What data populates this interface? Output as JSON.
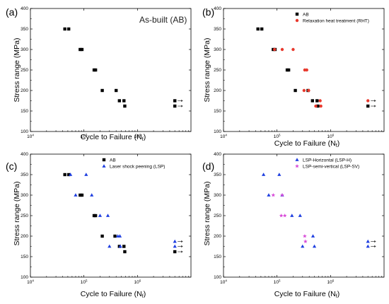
{
  "colors": {
    "ab": "#000000",
    "rht": "#e8392d",
    "lsp": "#1f3fe0",
    "lsp_sv": "#d84bd8",
    "arrow": "#333333"
  },
  "chart_data": [
    {
      "type": "scatter",
      "panel_label": "(a)",
      "inset_title": "As-built (AB)",
      "xlabel": "Cycle to Failure (N",
      "xlabel_sub": "f",
      "xlabel_end": ")",
      "ylabel": "Stress range (MPa)",
      "xscale": "log",
      "xlim": [
        10000,
        10000000
      ],
      "ylim": [
        100,
        400
      ],
      "xticks": [
        {
          "value": 10000,
          "base": "10",
          "exp": "4"
        },
        {
          "value": 100000,
          "base": "10",
          "exp": "5"
        },
        {
          "value": 1000000,
          "base": "10",
          "exp": "6"
        }
      ],
      "yticks": [
        100,
        150,
        200,
        250,
        300,
        350,
        400
      ],
      "legend": {
        "show": false,
        "placement": "top-right"
      },
      "series": [
        {
          "key": "ab",
          "marker": "square",
          "colorKey": "ab",
          "points": [
            [
              44000,
              350
            ],
            [
              52000,
              350
            ],
            [
              85000,
              300
            ],
            [
              92000,
              300
            ],
            [
              155000,
              250
            ],
            [
              165000,
              250
            ],
            [
              220000,
              200
            ],
            [
              400000,
              200
            ],
            [
              460000,
              175
            ],
            [
              560000,
              175
            ],
            [
              580000,
              162
            ],
            [
              5000000,
              175
            ],
            [
              5000000,
              162
            ]
          ],
          "runouts": [
            [
              5000000,
              175
            ],
            [
              5000000,
              162
            ]
          ]
        }
      ]
    },
    {
      "type": "scatter",
      "panel_label": "(b)",
      "xlabel": "Cycle to Failure (N",
      "xlabel_sub": "f",
      "xlabel_end": ")",
      "ylabel": "Stress range (MPa)",
      "xscale": "log",
      "xlim": [
        10000,
        10000000
      ],
      "ylim": [
        100,
        400
      ],
      "xticks": [
        {
          "value": 10000,
          "base": "10",
          "exp": "4"
        },
        {
          "value": 100000,
          "base": "10",
          "exp": "5"
        },
        {
          "value": 1000000,
          "base": "10",
          "exp": "6"
        }
      ],
      "yticks": [
        100,
        150,
        200,
        250,
        300,
        350,
        400
      ],
      "legend": {
        "show": true,
        "placement": "top-right"
      },
      "series": [
        {
          "key": "ab",
          "name": "AB",
          "marker": "square",
          "colorKey": "ab",
          "points": [
            [
              44000,
              350
            ],
            [
              52000,
              350
            ],
            [
              85000,
              300
            ],
            [
              92000,
              300
            ],
            [
              155000,
              250
            ],
            [
              165000,
              250
            ],
            [
              220000,
              200
            ],
            [
              380000,
              200
            ],
            [
              460000,
              175
            ],
            [
              560000,
              175
            ],
            [
              580000,
              162
            ],
            [
              5000000,
              162
            ]
          ],
          "runouts": [
            [
              5000000,
              162
            ]
          ]
        },
        {
          "key": "rht",
          "name": "Relaxation heat treatment (RHT)",
          "marker": "circle",
          "colorKey": "rht",
          "points": [
            [
              90000,
              300
            ],
            [
              125000,
              300
            ],
            [
              200000,
              300
            ],
            [
              330000,
              250
            ],
            [
              360000,
              250
            ],
            [
              320000,
              200
            ],
            [
              390000,
              200
            ],
            [
              530000,
              162
            ],
            [
              640000,
              175
            ],
            [
              660000,
              162
            ],
            [
              5000000,
              175
            ]
          ],
          "runouts": [
            [
              5000000,
              175
            ]
          ]
        }
      ]
    },
    {
      "type": "scatter",
      "panel_label": "(c)",
      "xlabel": "Cycle to Failure (N",
      "xlabel_sub": "f",
      "xlabel_end": ")",
      "ylabel": "Stress range (MPa)",
      "xscale": "log",
      "xlim": [
        10000,
        10000000
      ],
      "ylim": [
        100,
        400
      ],
      "xticks": [
        {
          "value": 10000,
          "base": "10",
          "exp": "4"
        },
        {
          "value": 100000,
          "base": "10",
          "exp": "5"
        },
        {
          "value": 1000000,
          "base": "10",
          "exp": "6"
        }
      ],
      "yticks": [
        100,
        150,
        200,
        250,
        300,
        350,
        400
      ],
      "legend": {
        "show": true,
        "placement": "top-right"
      },
      "series": [
        {
          "key": "ab",
          "name": "AB",
          "marker": "square",
          "colorKey": "ab",
          "points": [
            [
              44000,
              350
            ],
            [
              52000,
              350
            ],
            [
              85000,
              300
            ],
            [
              92000,
              300
            ],
            [
              155000,
              250
            ],
            [
              165000,
              250
            ],
            [
              220000,
              200
            ],
            [
              380000,
              200
            ],
            [
              460000,
              175
            ],
            [
              560000,
              175
            ],
            [
              580000,
              162
            ],
            [
              5000000,
              162
            ]
          ],
          "runouts": [
            [
              5000000,
              162
            ]
          ]
        },
        {
          "key": "lsp",
          "name": "Laser shock peening (LSP)",
          "marker": "triangle",
          "colorKey": "lsp",
          "points": [
            [
              56000,
              350
            ],
            [
              110000,
              350
            ],
            [
              70000,
              300
            ],
            [
              140000,
              300
            ],
            [
              200000,
              250
            ],
            [
              280000,
              250
            ],
            [
              300000,
              175
            ],
            [
              430000,
              200
            ],
            [
              470000,
              200
            ],
            [
              480000,
              175
            ],
            [
              5000000,
              187
            ],
            [
              5000000,
              175
            ]
          ],
          "runouts": [
            [
              5000000,
              187
            ],
            [
              5000000,
              175
            ]
          ]
        }
      ]
    },
    {
      "type": "scatter",
      "panel_label": "(d)",
      "xlabel": "Cycle to Failure (N",
      "xlabel_sub": "f",
      "xlabel_end": ")",
      "ylabel": "Stress range (MPa)",
      "xscale": "log",
      "xlim": [
        10000,
        10000000
      ],
      "ylim": [
        100,
        400
      ],
      "xticks": [
        {
          "value": 10000,
          "base": "10",
          "exp": "4"
        },
        {
          "value": 100000,
          "base": "10",
          "exp": "5"
        },
        {
          "value": 1000000,
          "base": "10",
          "exp": "6"
        }
      ],
      "yticks": [
        100,
        150,
        200,
        250,
        300,
        350,
        400
      ],
      "legend": {
        "show": true,
        "placement": "top-right"
      },
      "series": [
        {
          "key": "lsp_h",
          "name": "LSP-Horizontal (LSP-H)",
          "marker": "triangle",
          "colorKey": "lsp",
          "points": [
            [
              56000,
              350
            ],
            [
              110000,
              350
            ],
            [
              70000,
              300
            ],
            [
              125000,
              300
            ],
            [
              190000,
              250
            ],
            [
              270000,
              250
            ],
            [
              300000,
              175
            ],
            [
              470000,
              200
            ],
            [
              500000,
              175
            ],
            [
              5000000,
              187
            ],
            [
              5000000,
              175
            ]
          ],
          "runouts": [
            [
              5000000,
              187
            ],
            [
              5000000,
              175
            ]
          ]
        },
        {
          "key": "lsp_sv",
          "name": "LSP-semi-vertical (LSP-SV)",
          "marker": "star",
          "colorKey": "lsp_sv",
          "points": [
            [
              85000,
              300
            ],
            [
              125000,
              300
            ],
            [
              120000,
              250
            ],
            [
              140000,
              250
            ],
            [
              330000,
              200
            ],
            [
              340000,
              187
            ]
          ],
          "runouts": []
        }
      ]
    }
  ]
}
